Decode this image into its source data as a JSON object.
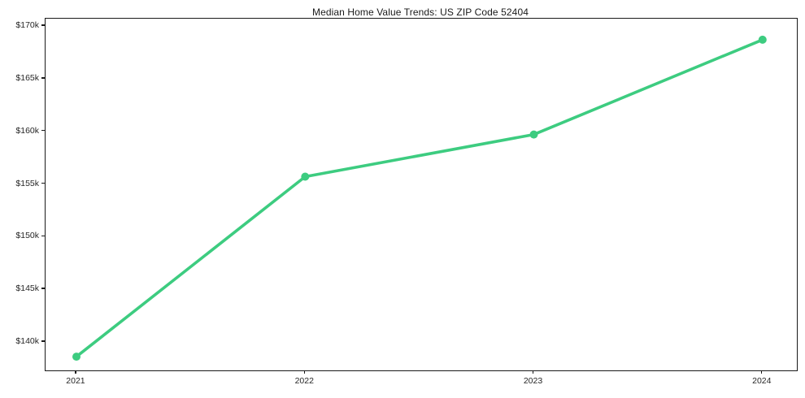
{
  "page": {
    "background_color": "#ffffff",
    "text_color": "#262626",
    "frame_color": "#1a1a1a"
  },
  "chart_data": {
    "type": "line",
    "title": "Median Home Value Trends: US ZIP Code 52404",
    "series": [
      {
        "name": "median-home-value",
        "x": [
          2021,
          2022,
          2023,
          2024
        ],
        "values": [
          138600,
          155700,
          159700,
          168700
        ],
        "line_color": "#3dcc80",
        "line_width": 3.6,
        "marker": "circle",
        "marker_radius": 5
      }
    ],
    "x_ticks": [
      2021,
      2022,
      2023,
      2024
    ],
    "x_tick_labels": [
      "2021",
      "2022",
      "2023",
      "2024"
    ],
    "y_ticks": [
      140000,
      145000,
      150000,
      155000,
      160000,
      165000,
      170000
    ],
    "y_tick_labels": [
      "$140k",
      "$145k",
      "$150k",
      "$155k",
      "$160k",
      "$165k",
      "$170k"
    ],
    "xlim": [
      2020.865,
      2024.15
    ],
    "ylim": [
      137300,
      170700
    ],
    "grid": false,
    "legend_position": "none",
    "xlabel": "",
    "ylabel": ""
  }
}
